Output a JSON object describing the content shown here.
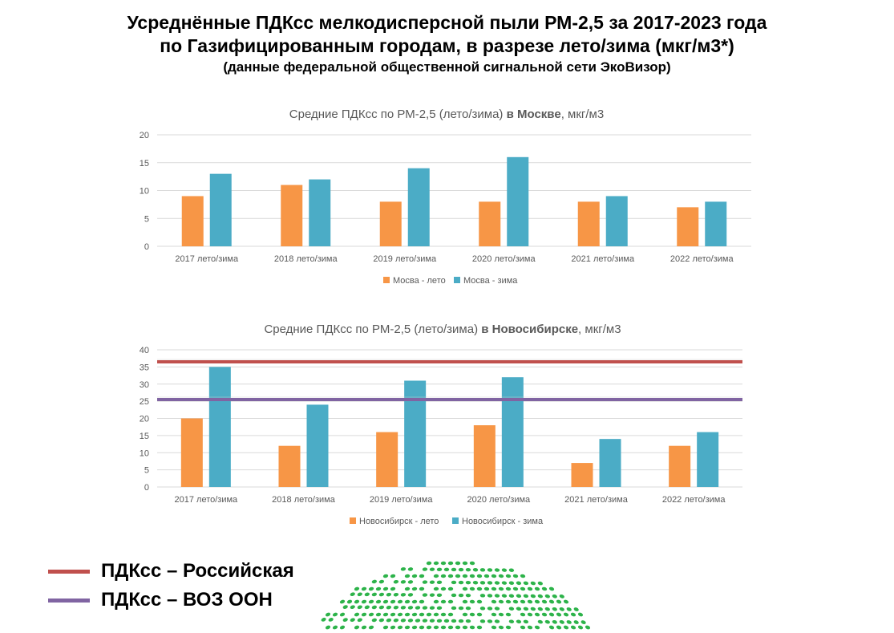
{
  "page": {
    "title_line1": "Усреднённые ПДКсс мелкодисперсной пыли РМ-2,5 за 2017-2023 года",
    "title_line2": "по Газифицированным городам, в разрезе лето/зима (мкг/м3*)",
    "subtitle": "(данные федеральной общественной сигнальной сети ЭкоВизор)"
  },
  "colors": {
    "summer": "#F79646",
    "winter": "#4BACC6",
    "russian_limit": "#C0504D",
    "who_limit": "#8064A2",
    "grid": "#D9D9D9",
    "logo": "#2DB34A"
  },
  "bottom_legend": [
    {
      "label": "ПДКсс – Российская",
      "color": "#C0504D"
    },
    {
      "label": "ПДКсс – ВОЗ ООН",
      "color": "#8064A2"
    }
  ],
  "chart_data": [
    {
      "type": "bar",
      "title_prefix": "Средние ПДКсс по РМ-2,5 (лето/зима) ",
      "title_bold": "в Москве",
      "title_suffix": ", мкг/м3",
      "categories": [
        "2017 лето/зима",
        "2018 лето/зима",
        "2019 лето/зима",
        "2020 лето/зима",
        "2021 лето/зима",
        "2022 лето/зима"
      ],
      "series": [
        {
          "name": "Мосва - лето",
          "values": [
            9,
            11,
            8,
            8,
            8,
            7
          ]
        },
        {
          "name": "Мосва - зима",
          "values": [
            13,
            12,
            14,
            16,
            9,
            8
          ]
        }
      ],
      "ylim": [
        0,
        20
      ],
      "yticks": [
        0,
        5,
        10,
        15,
        20
      ],
      "hlines": [],
      "grid": true,
      "legend": "bottom"
    },
    {
      "type": "bar",
      "title_prefix": "Средние ПДКсс по РМ-2,5 (лето/зима) ",
      "title_bold": "в Новосибирске",
      "title_suffix": ", мкг/м3",
      "categories": [
        "2017 лето/зима",
        "2018 лето/зима",
        "2019 лето/зима",
        "2020 лето/зима",
        "2021 лето/зима",
        "2022 лето/зима"
      ],
      "series": [
        {
          "name": "Новосибирск - лето",
          "values": [
            20,
            12,
            16,
            18,
            7,
            12
          ]
        },
        {
          "name": "Новосибирск - зима",
          "values": [
            35,
            24,
            31,
            32,
            14,
            16
          ]
        }
      ],
      "ylim": [
        0,
        40
      ],
      "yticks": [
        0,
        5,
        10,
        15,
        20,
        25,
        30,
        35,
        40
      ],
      "hlines": [
        {
          "name": "ПДКсс – Российская",
          "value": 36.5,
          "color": "#C0504D"
        },
        {
          "name": "ПДКсс – ВОЗ ООН",
          "value": 25.5,
          "color": "#8064A2"
        }
      ],
      "grid": true,
      "legend": "bottom"
    }
  ]
}
